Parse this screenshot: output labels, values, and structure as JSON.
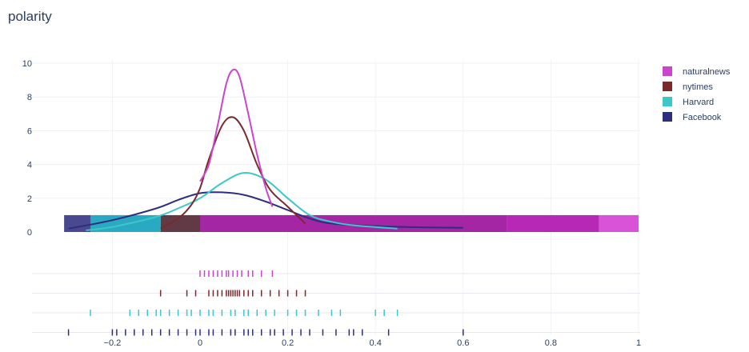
{
  "chart_data": {
    "type": "kde-with-histogram-and-rug",
    "title": "polarity",
    "xlabel": "",
    "ylabel": "",
    "xlim": [
      -0.31,
      1.0
    ],
    "ylim": [
      0,
      10
    ],
    "x_ticks": [
      -0.2,
      0,
      0.2,
      0.4,
      0.6,
      0.8,
      1
    ],
    "x_tick_labels": [
      "−0.2",
      "0",
      "0.2",
      "0.4",
      "0.6",
      "0.8",
      "1"
    ],
    "y_ticks": [
      0,
      2,
      4,
      6,
      8,
      10
    ],
    "y_tick_labels": [
      "0",
      "2",
      "4",
      "6",
      "8",
      "10"
    ],
    "grid": true,
    "legend_position": "top-right",
    "series": [
      {
        "name": "naturalnews",
        "color": "#cc44cc",
        "kde": [
          [
            0.0,
            3.0
          ],
          [
            0.02,
            4.0
          ],
          [
            0.04,
            6.3
          ],
          [
            0.06,
            8.8
          ],
          [
            0.075,
            9.6
          ],
          [
            0.09,
            9.2
          ],
          [
            0.11,
            7.0
          ],
          [
            0.13,
            4.6
          ],
          [
            0.15,
            2.6
          ],
          [
            0.165,
            1.5
          ]
        ],
        "hist_band": [
          0.0,
          1.0
        ],
        "rug": [
          0.0,
          0.01,
          0.02,
          0.03,
          0.04,
          0.05,
          0.06,
          0.065,
          0.075,
          0.085,
          0.095,
          0.11,
          0.12,
          0.14,
          0.165
        ]
      },
      {
        "name": "nytimes",
        "color": "#7a2a2a",
        "kde": [
          [
            -0.09,
            0.2
          ],
          [
            -0.05,
            0.8
          ],
          [
            -0.02,
            1.6
          ],
          [
            0.0,
            2.6
          ],
          [
            0.02,
            4.3
          ],
          [
            0.05,
            6.3
          ],
          [
            0.075,
            6.8
          ],
          [
            0.1,
            6.0
          ],
          [
            0.13,
            4.0
          ],
          [
            0.16,
            2.5
          ],
          [
            0.2,
            1.5
          ],
          [
            0.24,
            0.5
          ]
        ],
        "hist_band": [
          -0.09,
          0.0
        ],
        "rug": [
          -0.09,
          -0.03,
          -0.01,
          0.02,
          0.03,
          0.04,
          0.05,
          0.06,
          0.065,
          0.07,
          0.075,
          0.08,
          0.085,
          0.09,
          0.1,
          0.11,
          0.12,
          0.14,
          0.16,
          0.18,
          0.2,
          0.22,
          0.24
        ]
      },
      {
        "name": "Harvard",
        "color": "#3cc8c8",
        "kde": [
          [
            -0.26,
            0.1
          ],
          [
            -0.2,
            0.3
          ],
          [
            -0.1,
            0.9
          ],
          [
            -0.05,
            1.4
          ],
          [
            0.0,
            2.0
          ],
          [
            0.05,
            2.9
          ],
          [
            0.1,
            3.5
          ],
          [
            0.15,
            3.1
          ],
          [
            0.2,
            2.0
          ],
          [
            0.25,
            1.0
          ],
          [
            0.3,
            0.6
          ],
          [
            0.35,
            0.4
          ],
          [
            0.45,
            0.2
          ]
        ],
        "hist_band": [
          -0.25,
          -0.09
        ],
        "rug": [
          -0.25,
          -0.16,
          -0.14,
          -0.12,
          -0.1,
          -0.09,
          -0.07,
          -0.05,
          -0.03,
          -0.02,
          0.0,
          0.02,
          0.03,
          0.05,
          0.07,
          0.08,
          0.1,
          0.11,
          0.13,
          0.15,
          0.17,
          0.2,
          0.22,
          0.24,
          0.27,
          0.3,
          0.32,
          0.4,
          0.42,
          0.45
        ]
      },
      {
        "name": "Facebook",
        "color": "#2e2e7e",
        "kde": [
          [
            -0.3,
            0.2
          ],
          [
            -0.2,
            0.7
          ],
          [
            -0.1,
            1.4
          ],
          [
            -0.05,
            1.9
          ],
          [
            0.0,
            2.3
          ],
          [
            0.05,
            2.35
          ],
          [
            0.1,
            2.2
          ],
          [
            0.15,
            1.8
          ],
          [
            0.2,
            1.3
          ],
          [
            0.25,
            0.8
          ],
          [
            0.3,
            0.5
          ],
          [
            0.4,
            0.35
          ],
          [
            0.5,
            0.28
          ],
          [
            0.6,
            0.25
          ]
        ],
        "hist_band": [
          -0.31,
          -0.25
        ],
        "rug": [
          -0.3,
          -0.2,
          -0.19,
          -0.17,
          -0.15,
          -0.13,
          -0.11,
          -0.09,
          -0.07,
          -0.05,
          -0.03,
          -0.01,
          0.0,
          0.02,
          0.03,
          0.05,
          0.07,
          0.08,
          0.1,
          0.11,
          0.12,
          0.14,
          0.16,
          0.17,
          0.19,
          0.21,
          0.23,
          0.25,
          0.28,
          0.31,
          0.34,
          0.35,
          0.37,
          0.43,
          0.6
        ]
      }
    ],
    "hist_extra_bands": [
      {
        "range": [
          0.0,
          0.7
        ],
        "color": "#a01aa0"
      },
      {
        "range": [
          0.7,
          0.91
        ],
        "color": "#b31cb3"
      },
      {
        "range": [
          0.91,
          1.0
        ],
        "color": "#d64ad6"
      }
    ]
  }
}
